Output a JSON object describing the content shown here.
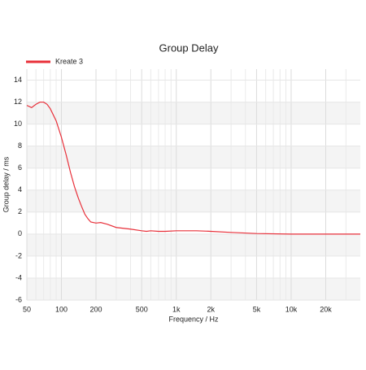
{
  "chart_data": {
    "type": "line",
    "title": "Group Delay",
    "x_label": "Frequency / Hz",
    "y_label": "Group delay / ms",
    "log_x": true,
    "grid": true,
    "legend": "top-left",
    "x": [
      50,
      55,
      60,
      65,
      70,
      75,
      80,
      90,
      100,
      110,
      120,
      130,
      140,
      150,
      160,
      170,
      180,
      200,
      220,
      250,
      300,
      400,
      500,
      550,
      600,
      700,
      800,
      1000,
      1500,
      2000,
      3000,
      5000,
      10000,
      20000,
      40000
    ],
    "series": [
      {
        "name": "Kreate 3",
        "color": "#e8303a",
        "values": [
          11.7,
          11.5,
          11.8,
          12.0,
          12.0,
          11.8,
          11.4,
          10.3,
          8.8,
          7.2,
          5.6,
          4.3,
          3.3,
          2.5,
          1.8,
          1.4,
          1.1,
          1.0,
          1.05,
          0.9,
          0.6,
          0.45,
          0.3,
          0.25,
          0.3,
          0.25,
          0.25,
          0.3,
          0.3,
          0.25,
          0.15,
          0.05,
          0,
          0,
          0
        ]
      }
    ],
    "xlim": [
      50,
      40000
    ],
    "xticks": [
      50,
      100,
      200,
      500,
      {
        "value": 1000,
        "label": "1k"
      },
      {
        "value": 2000,
        "label": "2k"
      },
      {
        "value": 5000,
        "label": "5k"
      },
      {
        "value": 10000,
        "label": "10k"
      },
      {
        "value": 20000,
        "label": "20k"
      }
    ],
    "xminor_ticks": [
      60,
      70,
      80,
      90,
      300,
      400,
      600,
      700,
      800,
      900,
      3000,
      4000,
      6000,
      7000,
      8000,
      9000,
      30000
    ],
    "ylim": [
      -6,
      15
    ],
    "yticks": [
      -6,
      -4,
      -2,
      0,
      2,
      4,
      6,
      8,
      10,
      12,
      14
    ]
  }
}
